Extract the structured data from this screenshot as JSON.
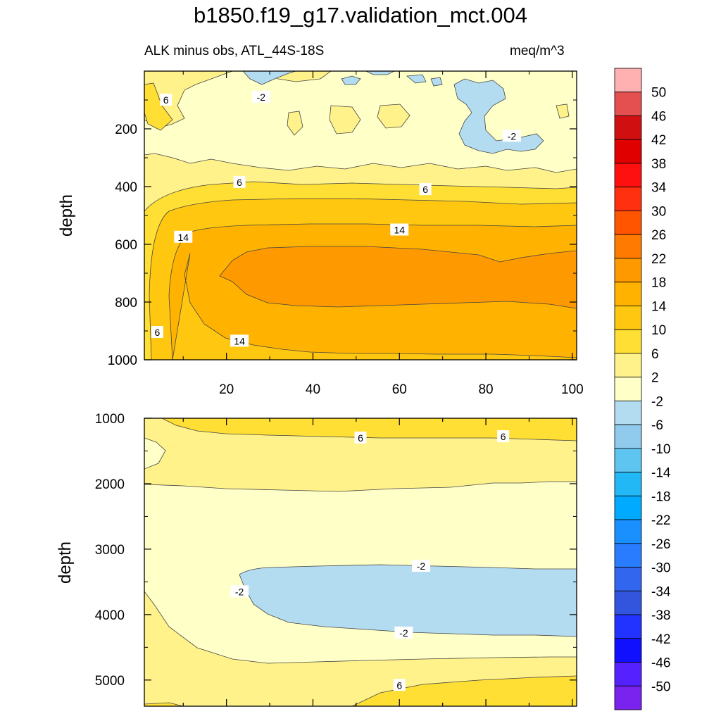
{
  "title": "b1850.f19_g17.validation_mct.004",
  "subtitle_left": "ALK minus obs, ATL_44S-18S",
  "subtitle_right": "meq/m^3",
  "chart_data": [
    {
      "type": "contour",
      "panel": "upper",
      "ylabel": "depth",
      "xlabel": "",
      "xlim": [
        1,
        101
      ],
      "ylim": [
        1000,
        0
      ],
      "xticks": [
        20,
        40,
        60,
        80,
        100
      ],
      "yticks": [
        200,
        400,
        600,
        800,
        1000
      ],
      "contour_labels": [
        {
          "text": "6",
          "x": 6,
          "y": 100
        },
        {
          "text": "-2",
          "x": 28,
          "y": 90
        },
        {
          "text": "-2",
          "x": 86,
          "y": 225
        },
        {
          "text": "6",
          "x": 23,
          "y": 385
        },
        {
          "text": "6",
          "x": 66,
          "y": 410
        },
        {
          "text": "14",
          "x": 60,
          "y": 550
        },
        {
          "text": "14",
          "x": 10,
          "y": 575
        },
        {
          "text": "6",
          "x": 4,
          "y": 905
        },
        {
          "text": "14",
          "x": 23,
          "y": 935
        }
      ]
    },
    {
      "type": "contour",
      "panel": "lower",
      "ylabel": "depth",
      "xlabel": "",
      "xlim": [
        1,
        101
      ],
      "ylim": [
        5400,
        1000
      ],
      "yticks": [
        1000,
        2000,
        3000,
        4000,
        5000
      ],
      "contour_labels": [
        {
          "text": "6",
          "x": 51,
          "y": 1300
        },
        {
          "text": "6",
          "x": 84,
          "y": 1280
        },
        {
          "text": "-2",
          "x": 65,
          "y": 3260
        },
        {
          "text": "-2",
          "x": 23,
          "y": 3650
        },
        {
          "text": "-2",
          "x": 61,
          "y": 4280
        },
        {
          "text": "6",
          "x": 60,
          "y": 5080
        }
      ]
    }
  ],
  "colorbar": {
    "labels": [
      "50",
      "46",
      "42",
      "38",
      "34",
      "30",
      "26",
      "22",
      "18",
      "14",
      "10",
      "6",
      "2",
      "-2",
      "-6",
      "-10",
      "-14",
      "-18",
      "-22",
      "-26",
      "-30",
      "-34",
      "-38",
      "-42",
      "-46",
      "-50"
    ],
    "colors": [
      "#ffb0b0",
      "#e45050",
      "#d01010",
      "#e00000",
      "#ff1010",
      "#ff3010",
      "#ff5500",
      "#ff7a00",
      "#ff9900",
      "#ffb300",
      "#ffc70f",
      "#ffdf33",
      "#fff28a",
      "#ffffc8",
      "#b4dcf0",
      "#90caed",
      "#5ec4f0",
      "#22b8f5",
      "#00aaff",
      "#1a90ff",
      "#2a7cff",
      "#3366ee",
      "#3355dd",
      "#2233ff",
      "#1010ff",
      "#5522ff",
      "#7a22ee"
    ]
  }
}
